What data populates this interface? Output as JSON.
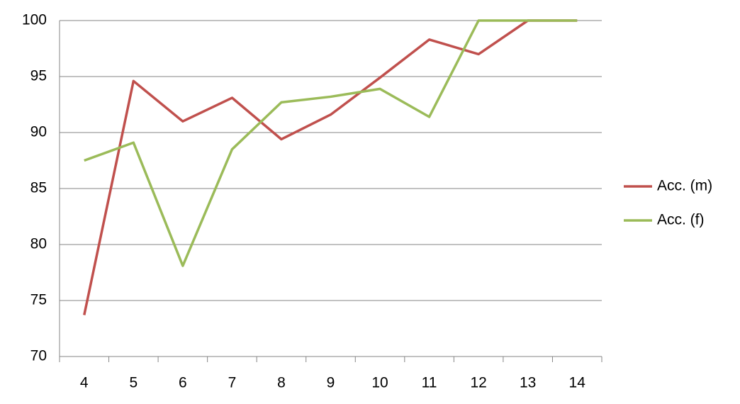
{
  "chart_data": {
    "type": "line",
    "categories": [
      "4",
      "5",
      "6",
      "7",
      "8",
      "9",
      "10",
      "11",
      "12",
      "13",
      "14"
    ],
    "series": [
      {
        "name": "Acc. (m)",
        "color": "#c0504d",
        "values": [
          73.7,
          94.6,
          91.0,
          93.1,
          89.4,
          91.6,
          94.9,
          98.3,
          97.0,
          100,
          100
        ]
      },
      {
        "name": "Acc. (f)",
        "color": "#9bbb59",
        "values": [
          87.5,
          89.1,
          78.1,
          88.5,
          92.7,
          93.2,
          93.9,
          91.4,
          100,
          100,
          100
        ]
      }
    ],
    "ylim": [
      70,
      100
    ],
    "yticks": [
      70,
      75,
      80,
      85,
      90,
      95,
      100
    ],
    "grid": true,
    "legend": "right"
  }
}
